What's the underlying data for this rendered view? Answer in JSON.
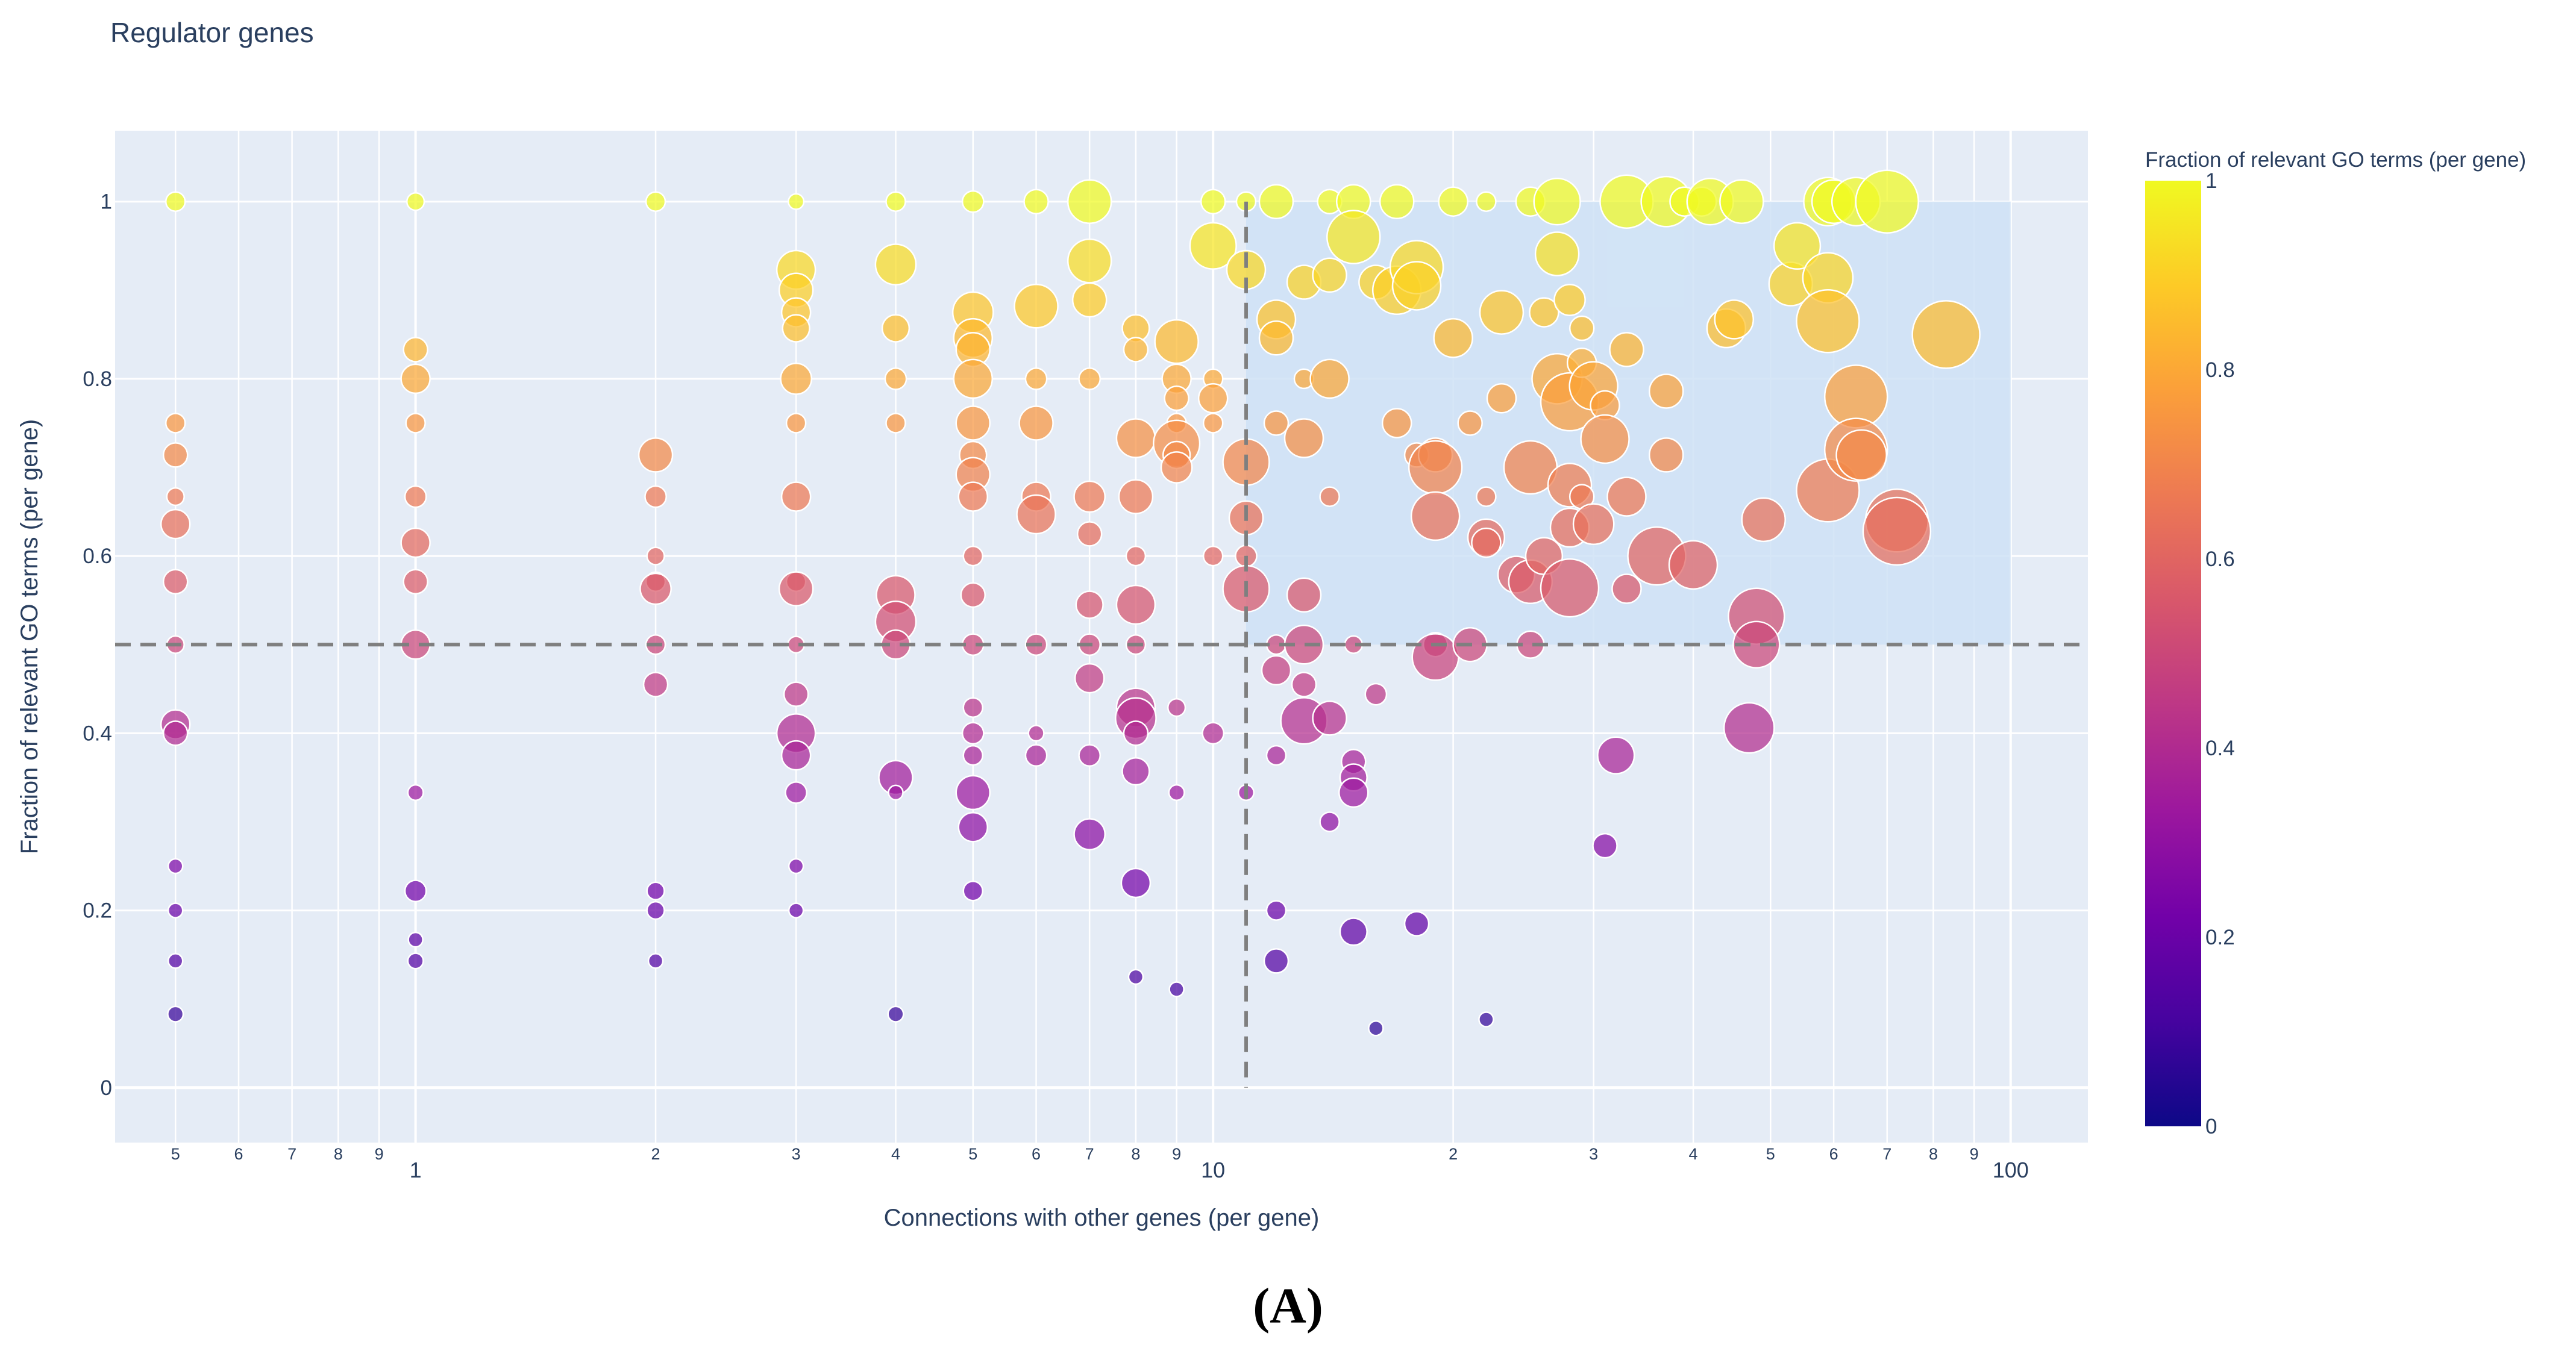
{
  "caption": "(A)",
  "chart_data": {
    "type": "scatter",
    "title": "Regulator genes",
    "xlabel": "Connections with other genes (per gene)",
    "ylabel": "Fraction of relevant GO terms (per gene)",
    "x_scale": "log",
    "xlim": [
      0.42,
      125
    ],
    "ylim": [
      -0.062,
      1.08
    ],
    "x_ticks": [
      {
        "v": 0.5,
        "label": "5"
      },
      {
        "v": 0.6,
        "label": "6"
      },
      {
        "v": 0.7,
        "label": "7"
      },
      {
        "v": 0.8,
        "label": "8"
      },
      {
        "v": 0.9,
        "label": "9"
      },
      {
        "v": 1,
        "label": "1"
      },
      {
        "v": 2,
        "label": "2"
      },
      {
        "v": 3,
        "label": "3"
      },
      {
        "v": 4,
        "label": "4"
      },
      {
        "v": 5,
        "label": "5"
      },
      {
        "v": 6,
        "label": "6"
      },
      {
        "v": 7,
        "label": "7"
      },
      {
        "v": 8,
        "label": "8"
      },
      {
        "v": 9,
        "label": "9"
      },
      {
        "v": 10,
        "label": "10"
      },
      {
        "v": 20,
        "label": "2"
      },
      {
        "v": 30,
        "label": "3"
      },
      {
        "v": 40,
        "label": "4"
      },
      {
        "v": 50,
        "label": "5"
      },
      {
        "v": 60,
        "label": "6"
      },
      {
        "v": 70,
        "label": "7"
      },
      {
        "v": 80,
        "label": "8"
      },
      {
        "v": 90,
        "label": "9"
      },
      {
        "v": 100,
        "label": "100"
      }
    ],
    "y_ticks": [
      0,
      0.2,
      0.4,
      0.6,
      0.8,
      1
    ],
    "thresholds": {
      "x": 11,
      "y": 0.5
    },
    "highlight_region": {
      "x": [
        11,
        100
      ],
      "y": [
        0.5,
        1
      ]
    },
    "colorbar": {
      "title": "Fraction of relevant GO terms (per gene)",
      "range": [
        0,
        1
      ],
      "ticks": [
        0,
        0.2,
        0.4,
        0.6,
        0.8,
        1
      ],
      "colors": [
        "#0d0887",
        "#46039f",
        "#7201a8",
        "#9c179e",
        "#bd3786",
        "#d8576b",
        "#ed7953",
        "#fb9f3a",
        "#fdca26",
        "#f0f921"
      ]
    },
    "points": [
      [
        0.5,
        1,
        1
      ],
      [
        0.5,
        0.75,
        1
      ],
      [
        0.5,
        0.714,
        1.5
      ],
      [
        0.5,
        0.667,
        0.8
      ],
      [
        0.5,
        0.636,
        2
      ],
      [
        0.5,
        0.571,
        1.5
      ],
      [
        0.5,
        0.5,
        0.8
      ],
      [
        0.5,
        0.41,
        2
      ],
      [
        0.5,
        0.4,
        1.5
      ],
      [
        0.5,
        0.25,
        0.5
      ],
      [
        0.5,
        0.2,
        0.5
      ],
      [
        0.5,
        0.143,
        0.5
      ],
      [
        0.5,
        0.083,
        0.6
      ],
      [
        1,
        1,
        0.8
      ],
      [
        1,
        0.833,
        1.5
      ],
      [
        1,
        0.8,
        2
      ],
      [
        1,
        0.75,
        1
      ],
      [
        1,
        0.667,
        1.2
      ],
      [
        1,
        0.615,
        2
      ],
      [
        1,
        0.571,
        1.5
      ],
      [
        1,
        0.5,
        2
      ],
      [
        1,
        0.333,
        0.6
      ],
      [
        1,
        0.222,
        1.2
      ],
      [
        1,
        0.167,
        0.5
      ],
      [
        1,
        0.143,
        0.6
      ],
      [
        2,
        1,
        1
      ],
      [
        2,
        0.714,
        2.5
      ],
      [
        2,
        0.667,
        1.2
      ],
      [
        2,
        0.6,
        0.8
      ],
      [
        2,
        0.571,
        1
      ],
      [
        2,
        0.563,
        2.2
      ],
      [
        2,
        0.5,
        1
      ],
      [
        2,
        0.455,
        1.5
      ],
      [
        2,
        0.222,
        0.8
      ],
      [
        2,
        0.2,
        0.8
      ],
      [
        2,
        0.143,
        0.5
      ],
      [
        3,
        1,
        0.6
      ],
      [
        3,
        0.923,
        3
      ],
      [
        3,
        0.9,
        2.5
      ],
      [
        3,
        0.875,
        2
      ],
      [
        3,
        0.857,
        1.8
      ],
      [
        3,
        0.8,
        2.2
      ],
      [
        3,
        0.75,
        1
      ],
      [
        3,
        0.667,
        2
      ],
      [
        3,
        0.571,
        1
      ],
      [
        3,
        0.563,
        2.5
      ],
      [
        3,
        0.5,
        0.7
      ],
      [
        3,
        0.444,
        1.5
      ],
      [
        3,
        0.4,
        3
      ],
      [
        3,
        0.375,
        2
      ],
      [
        3,
        0.333,
        1.2
      ],
      [
        3,
        0.25,
        0.5
      ],
      [
        3,
        0.2,
        0.5
      ],
      [
        4,
        1,
        1
      ],
      [
        4,
        0.929,
        3.2
      ],
      [
        4,
        0.857,
        1.8
      ],
      [
        4,
        0.8,
        1.2
      ],
      [
        4,
        0.75,
        1
      ],
      [
        4,
        0.556,
        3
      ],
      [
        4,
        0.526,
        3.2
      ],
      [
        4,
        0.5,
        2
      ],
      [
        4,
        0.35,
        2.5
      ],
      [
        4,
        0.333,
        0.5
      ],
      [
        4,
        0.083,
        0.6
      ],
      [
        5,
        1,
        1.2
      ],
      [
        5,
        0.875,
        3.2
      ],
      [
        5,
        0.846,
        3
      ],
      [
        5,
        0.833,
        2.5
      ],
      [
        5,
        0.8,
        3
      ],
      [
        5,
        0.75,
        2.5
      ],
      [
        5,
        0.714,
        1.8
      ],
      [
        5,
        0.692,
        2.5
      ],
      [
        5,
        0.667,
        2
      ],
      [
        5,
        0.6,
        1
      ],
      [
        5,
        0.556,
        1.5
      ],
      [
        5,
        0.5,
        1.2
      ],
      [
        5,
        0.429,
        1
      ],
      [
        5,
        0.4,
        1.2
      ],
      [
        5,
        0.375,
        1
      ],
      [
        5,
        0.333,
        2.5
      ],
      [
        5,
        0.294,
        2
      ],
      [
        5,
        0.222,
        1
      ],
      [
        6,
        1,
        1.5
      ],
      [
        6,
        0.882,
        3.5
      ],
      [
        6,
        0.8,
        1.2
      ],
      [
        6,
        0.75,
        2.5
      ],
      [
        6,
        0.667,
        2
      ],
      [
        6,
        0.647,
        3
      ],
      [
        6,
        0.5,
        1.2
      ],
      [
        6,
        0.4,
        0.6
      ],
      [
        6,
        0.375,
        1.2
      ],
      [
        7,
        1,
        3.5
      ],
      [
        7,
        0.933,
        3.5
      ],
      [
        7,
        0.889,
        2.5
      ],
      [
        7,
        0.8,
        1.2
      ],
      [
        7,
        0.667,
        2.2
      ],
      [
        7,
        0.625,
        1.5
      ],
      [
        7,
        0.545,
        1.8
      ],
      [
        7,
        0.5,
        1.2
      ],
      [
        7,
        0.462,
        2
      ],
      [
        7,
        0.375,
        1.2
      ],
      [
        7,
        0.286,
        2.2
      ],
      [
        8,
        0.857,
        1.8
      ],
      [
        8,
        0.833,
        1.5
      ],
      [
        8,
        0.733,
        3
      ],
      [
        8,
        0.667,
        2.5
      ],
      [
        8,
        0.6,
        1
      ],
      [
        8,
        0.545,
        3
      ],
      [
        8,
        0.5,
        1
      ],
      [
        8,
        0.429,
        3
      ],
      [
        8,
        0.417,
        3.2
      ],
      [
        8,
        0.4,
        1.5
      ],
      [
        8,
        0.357,
        1.8
      ],
      [
        8,
        0.231,
        2
      ],
      [
        8,
        0.125,
        0.5
      ],
      [
        9,
        0.842,
        3.5
      ],
      [
        9,
        0.8,
        2
      ],
      [
        9,
        0.778,
        1.5
      ],
      [
        9,
        0.75,
        1
      ],
      [
        9,
        0.727,
        3.8
      ],
      [
        9,
        0.714,
        1.8
      ],
      [
        9,
        0.7,
        2.2
      ],
      [
        9,
        0.429,
        0.8
      ],
      [
        9,
        0.333,
        0.6
      ],
      [
        9,
        0.111,
        0.5
      ],
      [
        10,
        1,
        1.5
      ],
      [
        10,
        0.95,
        3.8
      ],
      [
        10,
        0.8,
        1
      ],
      [
        10,
        0.778,
        2
      ],
      [
        10,
        0.75,
        1
      ],
      [
        10,
        0.6,
        1
      ],
      [
        10,
        0.4,
        1.2
      ],
      [
        11,
        1,
        1
      ],
      [
        11,
        0.923,
        3
      ],
      [
        11,
        0.706,
        3.8
      ],
      [
        11,
        0.643,
        2.5
      ],
      [
        11,
        0.6,
        1.2
      ],
      [
        11,
        0.563,
        3.8
      ],
      [
        11,
        0.333,
        0.6
      ],
      [
        12,
        1,
        2.5
      ],
      [
        12,
        0.867,
        3
      ],
      [
        12,
        0.846,
        2.5
      ],
      [
        12,
        0.75,
        1.5
      ],
      [
        12,
        0.5,
        1
      ],
      [
        12,
        0.471,
        2
      ],
      [
        12,
        0.375,
        1
      ],
      [
        12,
        0.2,
        1
      ],
      [
        12,
        0.143,
        1.5
      ],
      [
        13,
        0.909,
        2.5
      ],
      [
        13,
        0.8,
        1
      ],
      [
        13,
        0.733,
        3
      ],
      [
        13,
        0.556,
        2.5
      ],
      [
        13,
        0.5,
        3
      ],
      [
        13,
        0.455,
        1.5
      ],
      [
        13,
        0.414,
        3.8
      ],
      [
        14,
        1,
        1.5
      ],
      [
        14,
        0.917,
        2.5
      ],
      [
        14,
        0.8,
        3
      ],
      [
        14,
        0.667,
        1
      ],
      [
        14,
        0.417,
        2.5
      ],
      [
        14,
        0.3,
        1
      ],
      [
        15,
        1,
        2.5
      ],
      [
        15,
        0.96,
        4.5
      ],
      [
        15,
        0.5,
        0.8
      ],
      [
        15,
        0.368,
        1.5
      ],
      [
        15,
        0.35,
        1.8
      ],
      [
        15,
        0.333,
        2
      ],
      [
        15,
        0.176,
        1.8
      ],
      [
        16,
        0.909,
        2.5
      ],
      [
        16,
        0.444,
        1.2
      ],
      [
        16,
        0.067,
        0.5
      ],
      [
        17,
        1,
        2.5
      ],
      [
        17,
        0.9,
        4
      ],
      [
        17,
        0.75,
        2
      ],
      [
        18,
        0.926,
        4.5
      ],
      [
        18,
        0.905,
        4
      ],
      [
        18,
        0.714,
        1.5
      ],
      [
        18,
        0.185,
        1.5
      ],
      [
        19,
        0.714,
        2.5
      ],
      [
        19,
        0.7,
        4.5
      ],
      [
        19,
        0.645,
        4
      ],
      [
        19,
        0.5,
        1.5
      ],
      [
        19,
        0.486,
        3.8
      ],
      [
        20,
        1,
        2
      ],
      [
        20,
        0.846,
        3
      ],
      [
        21,
        0.75,
        1.5
      ],
      [
        21,
        0.5,
        2.5
      ],
      [
        22,
        1,
        1
      ],
      [
        22,
        0.667,
        1
      ],
      [
        22,
        0.621,
        2.8
      ],
      [
        22,
        0.615,
        2
      ],
      [
        22,
        0.077,
        0.5
      ],
      [
        23,
        0.875,
        3.5
      ],
      [
        23,
        0.778,
        2
      ],
      [
        24,
        0.579,
        2.8
      ],
      [
        25,
        1,
        2
      ],
      [
        25,
        0.7,
        4.5
      ],
      [
        25,
        0.571,
        3.5
      ],
      [
        25,
        0.5,
        1.8
      ],
      [
        26,
        0.875,
        2
      ],
      [
        26,
        0.6,
        2.8
      ],
      [
        27,
        1,
        3.8
      ],
      [
        27,
        0.941,
        3.5
      ],
      [
        27,
        0.8,
        4.2
      ],
      [
        28,
        0.889,
        2.2
      ],
      [
        28,
        0.774,
        5
      ],
      [
        28,
        0.68,
        3.5
      ],
      [
        28,
        0.632,
        3
      ],
      [
        28,
        0.564,
        5
      ],
      [
        29,
        0.857,
        1.5
      ],
      [
        29,
        0.818,
        2
      ],
      [
        29,
        0.667,
        1.5
      ],
      [
        30,
        0.792,
        4
      ],
      [
        30,
        0.636,
        3.2
      ],
      [
        31,
        0.77,
        2
      ],
      [
        31,
        0.732,
        4
      ],
      [
        31,
        0.273,
        1.5
      ],
      [
        32,
        0.375,
        2.8
      ],
      [
        33,
        1,
        4.5
      ],
      [
        33,
        0.833,
        2.5
      ],
      [
        33,
        0.667,
        3
      ],
      [
        33,
        0.563,
        2
      ],
      [
        36,
        0.6,
        5
      ],
      [
        37,
        1,
        4.2
      ],
      [
        37,
        0.786,
        2.5
      ],
      [
        37,
        0.714,
        2.5
      ],
      [
        39,
        1,
        2
      ],
      [
        40,
        0.59,
        4
      ],
      [
        41,
        1,
        2
      ],
      [
        42,
        1,
        3.8
      ],
      [
        44,
        0.857,
        3
      ],
      [
        45,
        0.867,
        3
      ],
      [
        46,
        1,
        3.5
      ],
      [
        47,
        0.406,
        4.2
      ],
      [
        48,
        0.532,
        4.8
      ],
      [
        48,
        0.5,
        3.8
      ],
      [
        49,
        0.641,
        3.5
      ],
      [
        53,
        0.907,
        3.5
      ],
      [
        54,
        0.95,
        3.8
      ],
      [
        59,
        1,
        4
      ],
      [
        59,
        0.914,
        4.2
      ],
      [
        59,
        0.865,
        5.5
      ],
      [
        59,
        0.674,
        5.5
      ],
      [
        60,
        1,
        3.5
      ],
      [
        64,
        1,
        4
      ],
      [
        64,
        0.78,
        5.5
      ],
      [
        64,
        0.72,
        5.5
      ],
      [
        65,
        0.714,
        4.2
      ],
      [
        70,
        1,
        5.5
      ],
      [
        72,
        0.64,
        5.5
      ],
      [
        72,
        0.628,
        6
      ],
      [
        83,
        0.85,
        6
      ]
    ]
  }
}
